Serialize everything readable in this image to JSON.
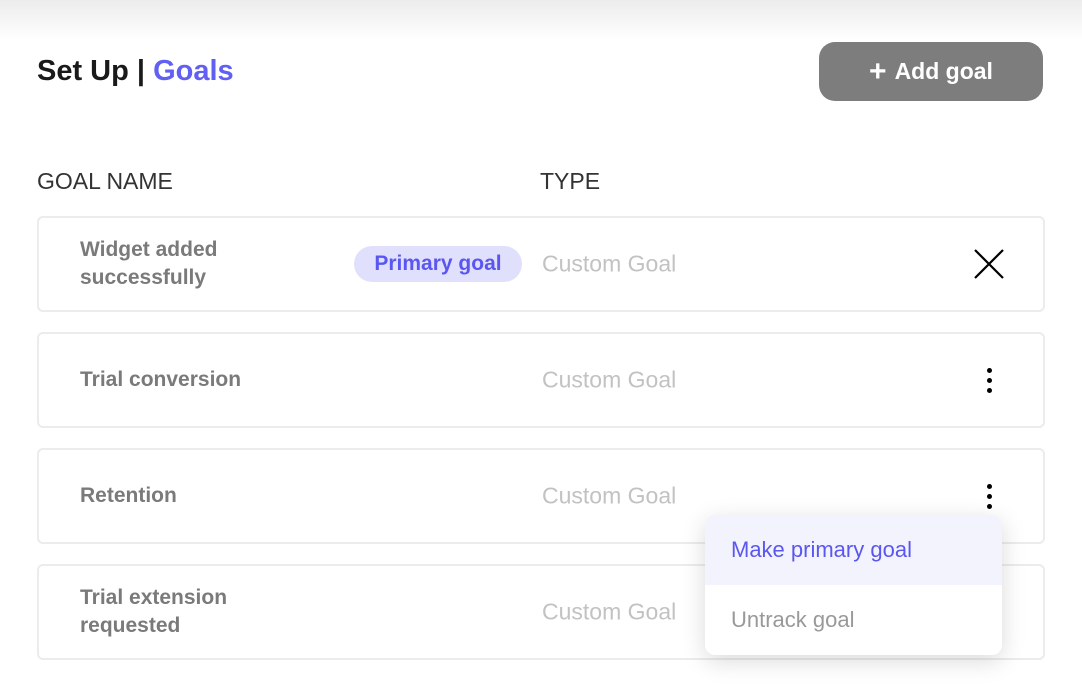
{
  "header": {
    "title_prefix": "Set Up | ",
    "title_section": "Goals",
    "add_button": "Add goal"
  },
  "columns": {
    "name": "GOAL NAME",
    "type": "TYPE"
  },
  "goals": [
    {
      "name": "Widget added successfully",
      "badge": "Primary goal",
      "type": "Custom Goal",
      "action_icon": "close-icon"
    },
    {
      "name": "Trial conversion",
      "type": "Custom Goal",
      "action_icon": "more-vertical-icon"
    },
    {
      "name": "Retention",
      "type": "Custom Goal",
      "action_icon": "more-vertical-icon"
    },
    {
      "name": "Trial extension requested",
      "type": "Custom Goal",
      "action_icon": "more-vertical-icon"
    }
  ],
  "menu": {
    "items": [
      "Make primary goal",
      "Untrack goal"
    ]
  },
  "colors": {
    "accent": "#6160f2",
    "button": "#7d7d7d",
    "badge_bg": "#e0e0fd"
  }
}
